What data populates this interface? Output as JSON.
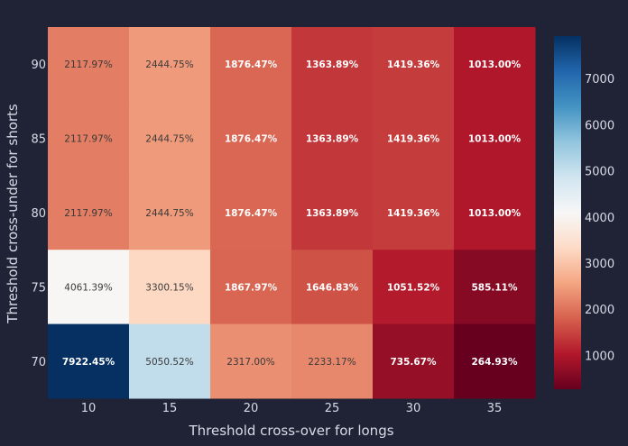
{
  "chart_data": {
    "type": "heatmap",
    "title": "",
    "xlabel": "Threshold cross-over for longs",
    "ylabel": "Threshold cross-under for shorts",
    "x": [
      "10",
      "15",
      "20",
      "25",
      "30",
      "35"
    ],
    "y": [
      "90",
      "85",
      "80",
      "75",
      "70"
    ],
    "values": [
      [
        2117.97,
        2444.75,
        1876.47,
        1363.89,
        1419.36,
        1013.0
      ],
      [
        2117.97,
        2444.75,
        1876.47,
        1363.89,
        1419.36,
        1013.0
      ],
      [
        2117.97,
        2444.75,
        1876.47,
        1363.89,
        1419.36,
        1013.0
      ],
      [
        4061.39,
        3300.15,
        1867.97,
        1646.83,
        1051.52,
        585.11
      ],
      [
        7922.45,
        5050.52,
        2317.0,
        2233.17,
        735.67,
        264.93
      ]
    ],
    "labels": [
      [
        "2117.97%",
        "2444.75%",
        "1876.47%",
        "1363.89%",
        "1419.36%",
        "1013.00%"
      ],
      [
        "2117.97%",
        "2444.75%",
        "1876.47%",
        "1363.89%",
        "1419.36%",
        "1013.00%"
      ],
      [
        "2117.97%",
        "2444.75%",
        "1876.47%",
        "1363.89%",
        "1419.36%",
        "1013.00%"
      ],
      [
        "4061.39%",
        "3300.15%",
        "1867.97%",
        "1646.83%",
        "1051.52%",
        "585.11%"
      ],
      [
        "7922.45%",
        "5050.52%",
        "2317.00%",
        "2233.17%",
        "735.67%",
        "264.93%"
      ]
    ],
    "colorscale": "RdBu",
    "zlim": [
      264.93,
      7922.45
    ],
    "colorbar_ticks": [
      "1000",
      "2000",
      "3000",
      "4000",
      "5000",
      "6000",
      "7000"
    ],
    "colorbar_tick_values": [
      1000,
      2000,
      3000,
      4000,
      5000,
      6000,
      7000
    ],
    "grid": false
  },
  "colors": {
    "background": "#1f2335",
    "text": "#d8dbe6",
    "scale_stops": [
      "#67001f",
      "#b2182b",
      "#d6604d",
      "#f4a582",
      "#fddbc7",
      "#f7f7f7",
      "#d1e5f0",
      "#92c5de",
      "#4393c3",
      "#2166ac",
      "#053061"
    ]
  }
}
